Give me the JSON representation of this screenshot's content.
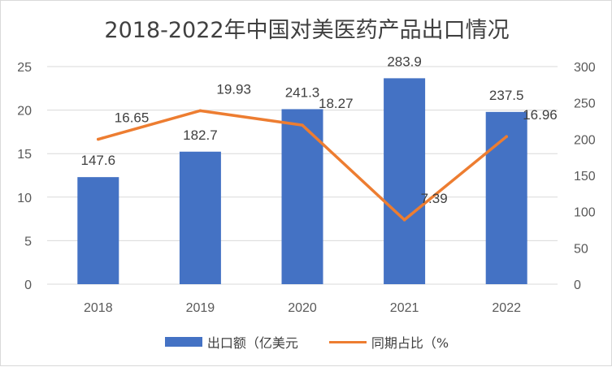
{
  "chart_data": {
    "type": "bar",
    "title": "2018-2022年中国对美医药产品出口情况",
    "categories": [
      "2018",
      "2019",
      "2020",
      "2021",
      "2022"
    ],
    "series": [
      {
        "name": "出口额（亿美元",
        "type": "bar",
        "axis": "right",
        "values": [
          147.6,
          182.7,
          241.3,
          283.9,
          237.5
        ],
        "color": "#4472c4"
      },
      {
        "name": "同期占比（%",
        "type": "line",
        "axis": "left",
        "values": [
          16.65,
          19.93,
          18.27,
          7.39,
          16.96
        ],
        "color": "#ed7d31"
      }
    ],
    "y_left": {
      "range": [
        0,
        25
      ],
      "ticks": [
        "0",
        "5",
        "10",
        "15",
        "20",
        "25"
      ]
    },
    "y_right": {
      "range": [
        0,
        300
      ],
      "ticks": [
        "0",
        "50",
        "100",
        "150",
        "200",
        "250",
        "300"
      ]
    },
    "grid": true,
    "legend": "bottom"
  }
}
